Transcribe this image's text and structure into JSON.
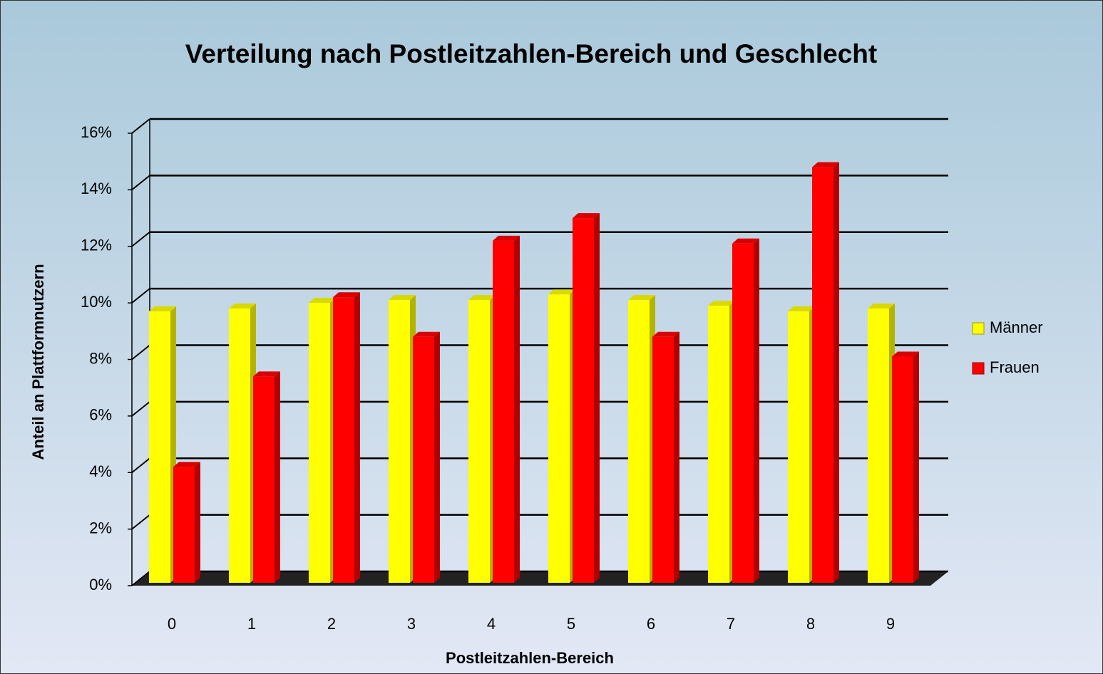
{
  "chart_data": {
    "type": "bar3d",
    "title": "Verteilung nach Postleitzahlen-Bereich und Geschlecht",
    "x_label": "Postleitzahlen-Bereich",
    "y_label": "Anteil an Plattformnutzern",
    "categories": [
      "0",
      "1",
      "2",
      "3",
      "4",
      "5",
      "6",
      "7",
      "8",
      "9"
    ],
    "series": [
      {
        "name": "Männer",
        "color": "#ffff00",
        "values": [
          9.7,
          9.8,
          10.0,
          10.1,
          10.1,
          10.3,
          10.1,
          9.9,
          9.7,
          9.8
        ]
      },
      {
        "name": "Frauen",
        "color": "#ff0000",
        "values": [
          4.2,
          7.4,
          10.2,
          8.8,
          12.2,
          13.0,
          8.8,
          12.1,
          14.8,
          8.1
        ]
      }
    ],
    "ylim": [
      0,
      16
    ],
    "yticks": [
      {
        "value": 0,
        "label": "0%"
      },
      {
        "value": 2,
        "label": "2%"
      },
      {
        "value": 4,
        "label": "4%"
      },
      {
        "value": 6,
        "label": "6%"
      },
      {
        "value": 8,
        "label": "8%"
      },
      {
        "value": 10,
        "label": "10%"
      },
      {
        "value": 12,
        "label": "12%"
      },
      {
        "value": 14,
        "label": "14%"
      },
      {
        "value": 16,
        "label": "16%"
      }
    ],
    "grid": true,
    "legend": "right"
  }
}
